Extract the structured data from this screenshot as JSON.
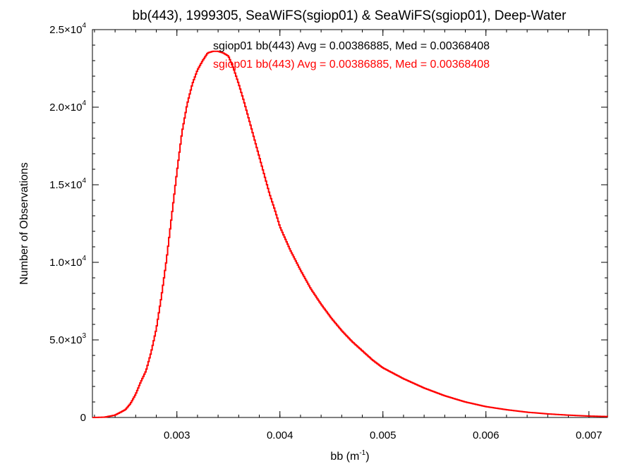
{
  "chart_data": {
    "type": "line",
    "title": "bb(443), 1999305, SeaWiFS(sgiop01) & SeaWiFS(sgiop01), Deep-Water",
    "xlabel": {
      "base": "bb (m",
      "sup": "-1",
      "close": ")"
    },
    "ylabel": "Number of Observations",
    "xlim": [
      0.00218,
      0.00718
    ],
    "ylim": [
      0,
      25000
    ],
    "grid": false,
    "x_ticks": [
      {
        "value": 0.003,
        "label": "0.003"
      },
      {
        "value": 0.004,
        "label": "0.004"
      },
      {
        "value": 0.005,
        "label": "0.005"
      },
      {
        "value": 0.006,
        "label": "0.006"
      },
      {
        "value": 0.007,
        "label": "0.007"
      }
    ],
    "y_ticks": [
      {
        "value": 0,
        "mant": "0",
        "exp": ""
      },
      {
        "value": 5000,
        "mant": "5.0×10",
        "exp": "3"
      },
      {
        "value": 10000,
        "mant": "1.0×10",
        "exp": "4"
      },
      {
        "value": 15000,
        "mant": "1.5×10",
        "exp": "4"
      },
      {
        "value": 20000,
        "mant": "2.0×10",
        "exp": "4"
      },
      {
        "value": 25000,
        "mant": "2.5×10",
        "exp": "4"
      }
    ],
    "annotations": [
      {
        "text": "sgiop01 bb(443) Avg = 0.00386885, Med = 0.00368408",
        "color": "#000000"
      },
      {
        "text": "sgiop01 bb(443) Avg = 0.00386885, Med = 0.00368408",
        "color": "#ff0000"
      }
    ],
    "series": [
      {
        "color": "#ff0000",
        "x": [
          0.0022,
          0.0023,
          0.0024,
          0.0025,
          0.00255,
          0.0026,
          0.00265,
          0.0027,
          0.00275,
          0.0028,
          0.00285,
          0.0029,
          0.00295,
          0.003,
          0.00305,
          0.0031,
          0.00315,
          0.0032,
          0.00325,
          0.0033,
          0.00335,
          0.0034,
          0.00345,
          0.0035,
          0.00355,
          0.0036,
          0.00365,
          0.0037,
          0.00375,
          0.0038,
          0.00385,
          0.0039,
          0.00395,
          0.004,
          0.0041,
          0.0042,
          0.0043,
          0.0044,
          0.0045,
          0.0046,
          0.0047,
          0.0048,
          0.0049,
          0.005,
          0.0052,
          0.0054,
          0.0056,
          0.0058,
          0.006,
          0.0062,
          0.0064,
          0.0066,
          0.0068,
          0.007,
          0.00718
        ],
        "y": [
          0,
          20,
          150,
          500,
          900,
          1500,
          2300,
          3000,
          4200,
          5700,
          7800,
          10200,
          13000,
          15800,
          18400,
          20200,
          21500,
          22400,
          23000,
          23500,
          23600,
          23600,
          23500,
          23300,
          22500,
          21500,
          20400,
          19200,
          18000,
          16800,
          15600,
          14400,
          13400,
          12300,
          10800,
          9500,
          8300,
          7300,
          6400,
          5600,
          4900,
          4300,
          3700,
          3200,
          2500,
          1900,
          1400,
          1000,
          700,
          500,
          340,
          230,
          150,
          90,
          60
        ]
      }
    ]
  }
}
